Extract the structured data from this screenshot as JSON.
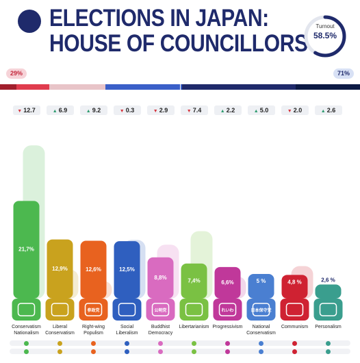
{
  "header": {
    "title_line1": "ELECTIONS IN JAPAN:",
    "title_line2": "HOUSE OF COUNCILLORS"
  },
  "turnout": {
    "label": "Turnout",
    "value": "58.5%",
    "fraction": 0.585
  },
  "seat_split": {
    "left_label": "29%",
    "right_label": "71%"
  },
  "colors": {
    "navy": "#1f2a6b",
    "seat_segments": [
      "#a11f2d",
      "#e03c4e",
      "#e8c4c8",
      "#3a5fc8",
      "#1f2a6b",
      "#0d1a45"
    ]
  },
  "chart_data": {
    "type": "bar",
    "categories": [
      "Conservatism Nationalism",
      "Liberal Conservatism",
      "Right-wing Populism",
      "Social Liberalism",
      "Buddhist Democracy",
      "Libertarianism",
      "Progressivism",
      "National Conservatism",
      "Communism",
      "Personalism"
    ],
    "label_lines": [
      [
        "Conservatism",
        "Nationalism"
      ],
      [
        "Liberal",
        "Conservatism"
      ],
      [
        "Right-wing",
        "Populism"
      ],
      [
        "Social",
        "Liberalism"
      ],
      [
        "Buddhist",
        "Democracy"
      ],
      [
        "Libertarianism"
      ],
      [
        "Progressivism"
      ],
      [
        "National",
        "Conservatism"
      ],
      [
        "Communism"
      ],
      [
        "Personalism"
      ]
    ],
    "values": [
      21.7,
      12.9,
      12.6,
      12.5,
      8.8,
      7.4,
      6.6,
      5.0,
      4.8,
      2.6
    ],
    "value_labels": [
      "21,7%",
      "12,9%",
      "12,6%",
      "12,5%",
      "8,8%",
      "7,4%",
      "6,6%",
      "5 %",
      "4,8 %",
      "2,6 %"
    ],
    "previous_values": [
      34.4,
      6.0,
      3.4,
      12.8,
      11.7,
      14.8,
      4.4,
      0.0,
      6.8,
      0.0
    ],
    "changes": [
      {
        "dir": "down",
        "text": "12.7"
      },
      {
        "dir": "up",
        "text": "6.9"
      },
      {
        "dir": "up",
        "text": "9.2"
      },
      {
        "dir": "down",
        "text": "0.3"
      },
      {
        "dir": "down",
        "text": "2.9"
      },
      {
        "dir": "down",
        "text": "7.4"
      },
      {
        "dir": "up",
        "text": "2.2"
      },
      {
        "dir": "up",
        "text": "5.0"
      },
      {
        "dir": "down",
        "text": "2.0"
      },
      {
        "dir": "up",
        "text": "2.6"
      }
    ],
    "colors": [
      "#4cb84f",
      "#c9a21e",
      "#e8621f",
      "#2f5fbf",
      "#d96bc0",
      "#7ac143",
      "#c0389a",
      "#4a7fd1",
      "#cf2232",
      "#3a9e8e"
    ],
    "ylim": [
      0,
      36
    ],
    "logo_texts": [
      "",
      "",
      "参政党",
      "",
      "公明党",
      "",
      "れいわ",
      "日本保守党",
      "",
      ""
    ],
    "dot_rows": [
      [
        "#4cb84f",
        "#c9a21e",
        "#e8621f",
        "#2f5fbf",
        "#d96bc0",
        "#7ac143",
        "#c0389a",
        "#4a7fd1",
        "#cf2232",
        "#3a9e8e"
      ],
      [
        "#4cb84f",
        "#c9a21e",
        "#e8621f",
        "#2f5fbf",
        "#d96bc0",
        "#7ac143",
        "#c0389a",
        "#4a7fd1",
        "#cf2232",
        "#3a9e8e"
      ]
    ]
  }
}
